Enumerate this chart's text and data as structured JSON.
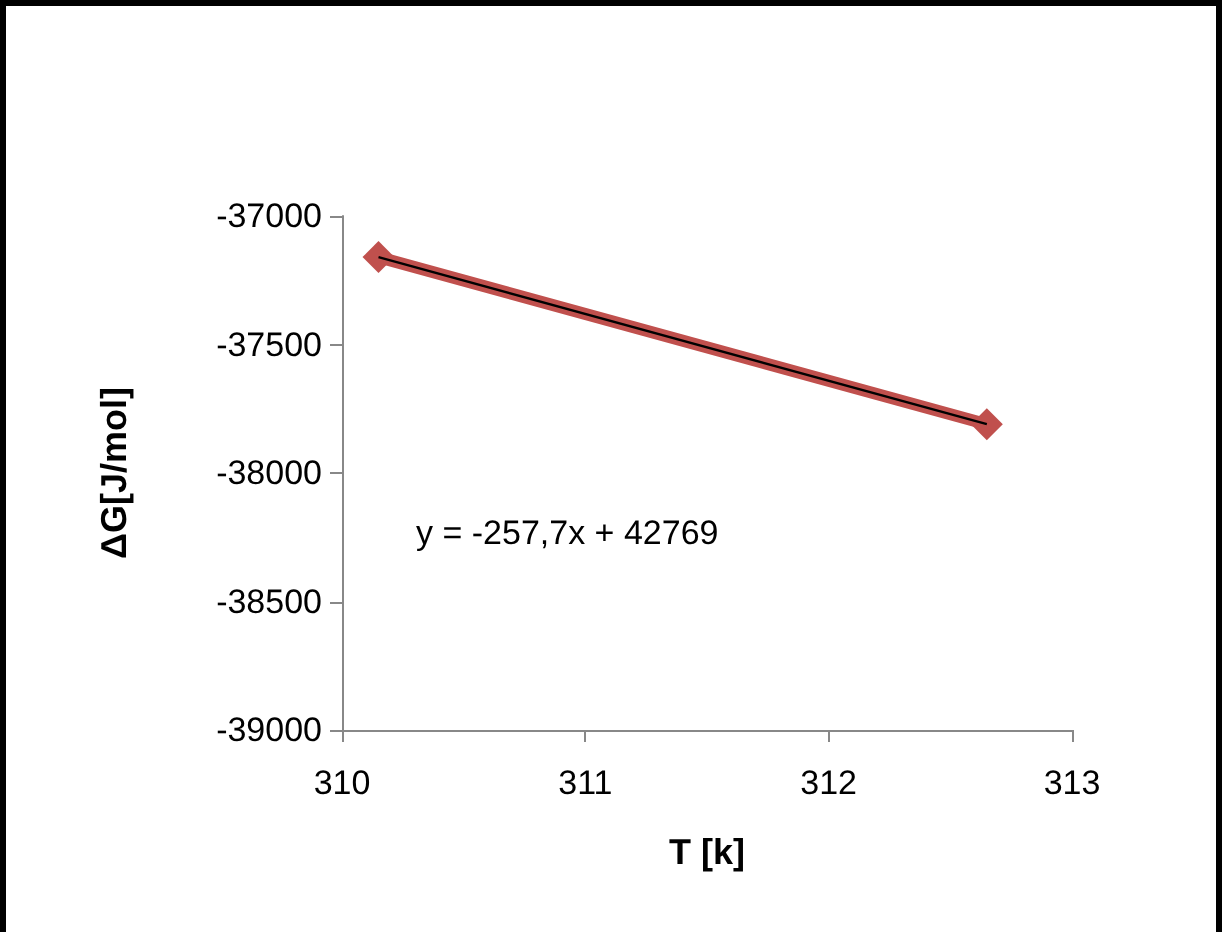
{
  "chart_data": {
    "type": "line",
    "xlabel": "T [k]",
    "ylabel": "ΔG[J/mol]",
    "x": [
      310.15,
      312.65
    ],
    "series": [
      {
        "color": "#c0504d",
        "values": [
          -37160,
          -37810
        ],
        "marker": "diamond"
      },
      {
        "type": "line",
        "color": "#000000",
        "x": [
          310.15,
          312.65
        ],
        "values": [
          -37160,
          -37810
        ],
        "marker": "none"
      }
    ],
    "xlim": [
      310,
      313
    ],
    "xticks": [
      310,
      311,
      312,
      313
    ],
    "ylim": [
      -39000,
      -37000
    ],
    "yticks": [
      -39000,
      -38500,
      -38000,
      -37500,
      -37000
    ],
    "grid": false,
    "annotations": [
      "y = -257,7x + 42769"
    ]
  }
}
